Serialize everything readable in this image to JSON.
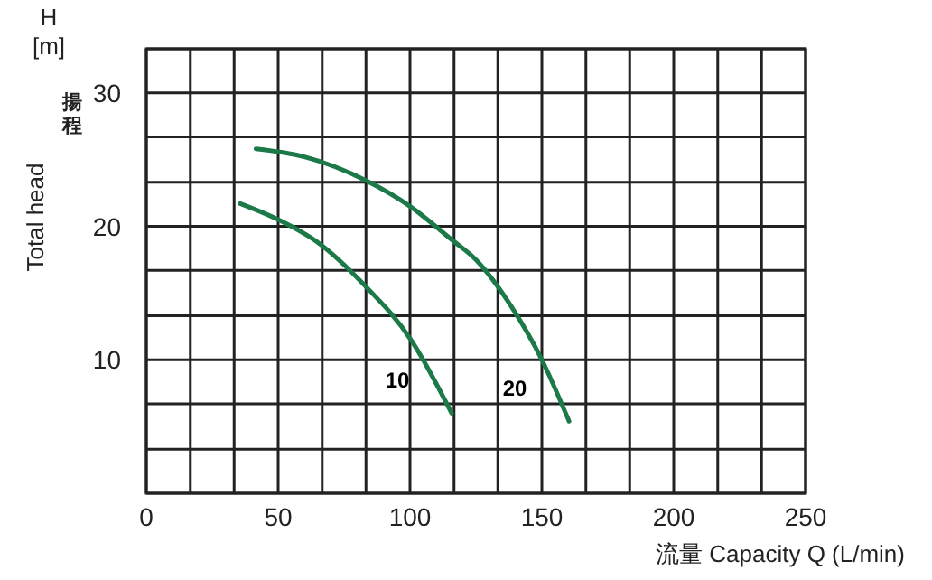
{
  "chart_data": {
    "type": "line",
    "xlabel": "流量 Capacity  Q (L/min)",
    "ylabel": "Total head",
    "annotations": [
      "H",
      "[m]",
      "揚程",
      "10",
      "20"
    ],
    "series": [
      {
        "color": "#1b7a48",
        "x": [
          35.6,
          50,
          65,
          82.2,
          100.7,
          115.8
        ],
        "values": [
          21.7,
          20.5,
          18.8,
          15.7,
          11.4,
          6.0
        ]
      },
      {
        "color": "#1b7a48",
        "x": [
          41.6,
          60,
          83.6,
          100,
          115.8,
          125,
          138.4,
          150,
          160.3
        ],
        "values": [
          25.8,
          25.2,
          23.4,
          21.5,
          19.0,
          17.5,
          14.0,
          10.0,
          5.4
        ]
      }
    ],
    "xlim": [
      0,
      250
    ],
    "xticks": [
      0,
      {
        "value": 16.7,
        "label": null
      },
      {
        "value": 33.3,
        "label": null
      },
      50,
      {
        "value": 66.7,
        "label": null
      },
      {
        "value": 83.3,
        "label": null
      },
      100,
      {
        "value": 116.7,
        "label": null
      },
      {
        "value": 133.3,
        "label": null
      },
      150,
      {
        "value": 166.7,
        "label": null
      },
      {
        "value": 183.3,
        "label": null
      },
      200,
      {
        "value": 216.7,
        "label": null
      },
      {
        "value": 233.3,
        "label": null
      },
      250
    ],
    "ylim": [
      0,
      33.3
    ],
    "yticks": [
      {
        "value": 0,
        "label": null
      },
      {
        "value": 3.3,
        "label": null
      },
      {
        "value": 6.7,
        "label": null
      },
      10,
      {
        "value": 13.3,
        "label": null
      },
      {
        "value": 16.7,
        "label": null
      },
      20,
      {
        "value": 23.3,
        "label": null
      },
      {
        "value": 26.7,
        "label": null
      },
      30,
      {
        "value": 33.3,
        "label": null
      }
    ],
    "grid": true,
    "marker": "none",
    "line_style": "solid"
  }
}
